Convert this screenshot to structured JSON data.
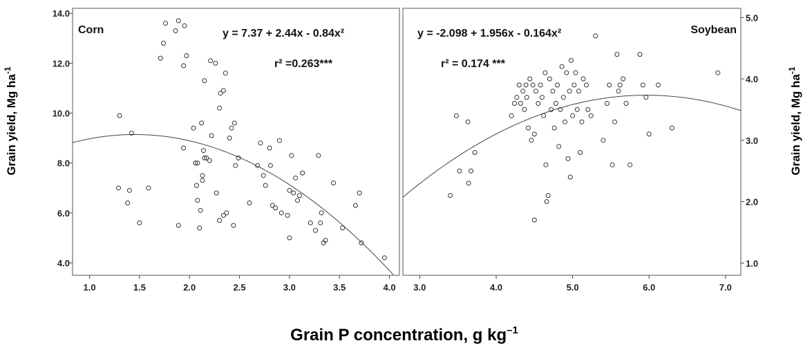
{
  "x_axis_title": "Grain P concentration, g kg",
  "x_axis_unit_exponent": "–1",
  "chart_data": [
    {
      "type": "scatter",
      "panel": "left",
      "crop_label": "Corn",
      "equation": "y = 7.37 + 2.44x -  0.84x²",
      "r2": "r² =0.263***",
      "ylabel": "Grain yield, Mg ha",
      "ylabel_exponent": "-1",
      "xlim": [
        0.83,
        4.1
      ],
      "ylim": [
        3.5,
        14.2
      ],
      "xticks": [
        1.0,
        1.5,
        2.0,
        2.5,
        3.0,
        3.5,
        4.0
      ],
      "xtick_labels": [
        "1.0",
        "1.5",
        "2.0",
        "2.5",
        "3.0",
        "3.5",
        "4.0"
      ],
      "yticks": [
        4.0,
        6.0,
        8.0,
        10.0,
        12.0,
        14.0
      ],
      "ytick_labels": [
        "4.0",
        "6.0",
        "8.0",
        "10.0",
        "12.0",
        "14.0"
      ],
      "fit": {
        "intercept": 7.37,
        "b1": 2.44,
        "b2": -0.84
      },
      "points": [
        [
          1.3,
          9.9
        ],
        [
          1.42,
          9.2
        ],
        [
          1.29,
          7.0
        ],
        [
          1.4,
          6.9
        ],
        [
          1.38,
          6.4
        ],
        [
          1.5,
          5.6
        ],
        [
          1.59,
          7.0
        ],
        [
          1.71,
          12.2
        ],
        [
          1.74,
          12.8
        ],
        [
          1.76,
          13.6
        ],
        [
          1.86,
          13.3
        ],
        [
          1.89,
          13.7
        ],
        [
          1.95,
          13.5
        ],
        [
          1.94,
          11.9
        ],
        [
          1.97,
          12.3
        ],
        [
          1.94,
          8.6
        ],
        [
          1.89,
          5.5
        ],
        [
          2.04,
          9.4
        ],
        [
          2.06,
          8.0
        ],
        [
          2.08,
          8.0
        ],
        [
          2.07,
          7.1
        ],
        [
          2.08,
          6.5
        ],
        [
          2.11,
          6.1
        ],
        [
          2.12,
          9.6
        ],
        [
          2.14,
          8.5
        ],
        [
          2.15,
          8.2
        ],
        [
          2.17,
          8.2
        ],
        [
          2.2,
          8.1
        ],
        [
          2.15,
          11.3
        ],
        [
          2.21,
          12.1
        ],
        [
          2.26,
          12.0
        ],
        [
          2.13,
          7.3
        ],
        [
          2.13,
          7.5
        ],
        [
          2.1,
          5.4
        ],
        [
          2.22,
          9.1
        ],
        [
          2.27,
          6.8
        ],
        [
          2.3,
          10.2
        ],
        [
          2.31,
          10.8
        ],
        [
          2.34,
          10.9
        ],
        [
          2.36,
          11.6
        ],
        [
          2.3,
          5.7
        ],
        [
          2.34,
          5.9
        ],
        [
          2.37,
          6.0
        ],
        [
          2.4,
          9.0
        ],
        [
          2.42,
          9.4
        ],
        [
          2.45,
          9.6
        ],
        [
          2.46,
          7.9
        ],
        [
          2.44,
          5.5
        ],
        [
          2.49,
          8.2
        ],
        [
          2.6,
          6.4
        ],
        [
          2.68,
          7.9
        ],
        [
          2.71,
          8.8
        ],
        [
          2.74,
          7.5
        ],
        [
          2.76,
          7.1
        ],
        [
          2.8,
          8.6
        ],
        [
          2.81,
          7.9
        ],
        [
          2.83,
          6.3
        ],
        [
          2.86,
          6.2
        ],
        [
          2.9,
          8.9
        ],
        [
          2.92,
          6.0
        ],
        [
          2.98,
          5.9
        ],
        [
          3.0,
          6.9
        ],
        [
          3.02,
          8.3
        ],
        [
          3.0,
          5.0
        ],
        [
          3.04,
          6.8
        ],
        [
          3.06,
          7.4
        ],
        [
          3.08,
          6.5
        ],
        [
          3.1,
          6.7
        ],
        [
          3.13,
          7.6
        ],
        [
          3.21,
          5.6
        ],
        [
          3.26,
          5.3
        ],
        [
          3.29,
          8.3
        ],
        [
          3.31,
          5.6
        ],
        [
          3.32,
          6.0
        ],
        [
          3.34,
          4.8
        ],
        [
          3.36,
          4.9
        ],
        [
          3.44,
          7.2
        ],
        [
          3.53,
          5.4
        ],
        [
          3.66,
          6.3
        ],
        [
          3.7,
          6.8
        ],
        [
          3.72,
          4.8
        ],
        [
          3.95,
          4.2
        ]
      ]
    },
    {
      "type": "scatter",
      "panel": "right",
      "crop_label": "Soybean",
      "equation": "y = -2.098 + 1.956x - 0.164x²",
      "r2": "r² = 0.174 ***",
      "ylabel": "Grain yield, Mg ha",
      "ylabel_exponent": "-1",
      "xlim": [
        2.78,
        7.2
      ],
      "ylim": [
        0.8,
        5.15
      ],
      "xticks": [
        3.0,
        4.0,
        5.0,
        6.0,
        7.0
      ],
      "xtick_labels": [
        "3.0",
        "4.0",
        "5.0",
        "6.0",
        "7.0"
      ],
      "yticks": [
        1.0,
        2.0,
        3.0,
        4.0,
        5.0
      ],
      "ytick_labels": [
        "1.0",
        "2.0",
        "3.0",
        "4.0",
        "5.0"
      ],
      "fit": {
        "intercept": -2.098,
        "b1": 1.956,
        "b2": -0.164
      },
      "points": [
        [
          3.4,
          2.1
        ],
        [
          3.48,
          3.4
        ],
        [
          3.52,
          2.5
        ],
        [
          3.63,
          3.3
        ],
        [
          3.64,
          2.3
        ],
        [
          3.67,
          2.5
        ],
        [
          3.72,
          2.8
        ],
        [
          4.2,
          3.4
        ],
        [
          4.24,
          3.6
        ],
        [
          4.27,
          3.7
        ],
        [
          4.3,
          3.9
        ],
        [
          4.32,
          3.6
        ],
        [
          4.35,
          3.8
        ],
        [
          4.37,
          3.5
        ],
        [
          4.39,
          3.9
        ],
        [
          4.4,
          3.7
        ],
        [
          4.42,
          3.2
        ],
        [
          4.44,
          4.0
        ],
        [
          4.46,
          3.0
        ],
        [
          4.48,
          3.9
        ],
        [
          4.5,
          1.7
        ],
        [
          4.5,
          3.1
        ],
        [
          4.52,
          3.8
        ],
        [
          4.55,
          3.6
        ],
        [
          4.58,
          3.9
        ],
        [
          4.6,
          3.7
        ],
        [
          4.62,
          3.4
        ],
        [
          4.64,
          4.1
        ],
        [
          4.66,
          2.0
        ],
        [
          4.68,
          2.1
        ],
        [
          4.65,
          2.6
        ],
        [
          4.7,
          4.0
        ],
        [
          4.72,
          3.5
        ],
        [
          4.74,
          3.8
        ],
        [
          4.76,
          3.2
        ],
        [
          4.78,
          3.6
        ],
        [
          4.8,
          3.9
        ],
        [
          4.82,
          2.9
        ],
        [
          4.84,
          3.5
        ],
        [
          4.86,
          4.2
        ],
        [
          4.88,
          3.7
        ],
        [
          4.9,
          3.3
        ],
        [
          4.92,
          4.1
        ],
        [
          4.94,
          2.7
        ],
        [
          4.96,
          3.8
        ],
        [
          4.97,
          2.4
        ],
        [
          4.98,
          4.3
        ],
        [
          5.0,
          3.4
        ],
        [
          5.02,
          3.9
        ],
        [
          5.04,
          4.1
        ],
        [
          5.06,
          3.5
        ],
        [
          5.08,
          3.8
        ],
        [
          5.1,
          2.8
        ],
        [
          5.12,
          3.3
        ],
        [
          5.14,
          4.0
        ],
        [
          5.18,
          3.9
        ],
        [
          5.2,
          3.5
        ],
        [
          5.24,
          3.4
        ],
        [
          5.3,
          4.7
        ],
        [
          5.4,
          3.0
        ],
        [
          5.45,
          3.6
        ],
        [
          5.48,
          3.9
        ],
        [
          5.52,
          2.6
        ],
        [
          5.55,
          3.3
        ],
        [
          5.58,
          4.4
        ],
        [
          5.6,
          3.8
        ],
        [
          5.62,
          3.9
        ],
        [
          5.66,
          4.0
        ],
        [
          5.7,
          3.6
        ],
        [
          5.75,
          2.6
        ],
        [
          5.88,
          4.4
        ],
        [
          5.92,
          3.9
        ],
        [
          5.96,
          3.7
        ],
        [
          6.0,
          3.1
        ],
        [
          6.12,
          3.9
        ],
        [
          6.3,
          3.2
        ],
        [
          6.9,
          4.1
        ]
      ]
    }
  ]
}
